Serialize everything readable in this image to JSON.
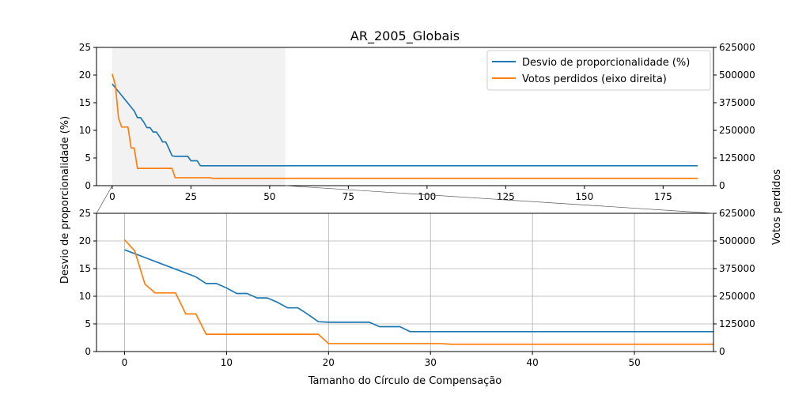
{
  "figure": {
    "title": "AR_2005_Globais",
    "ylabel_left": "Desvio de proporcionalidade (%)",
    "ylabel_right": "Votos perdidos",
    "xlabel": "Tamanho do Círculo de Compensação"
  },
  "legend": {
    "position": "top-right",
    "entries": [
      {
        "label": "Desvio de proporcionalidade (%)",
        "color": "#1f77b4"
      },
      {
        "label": "Votos perdidos (eixo direita)",
        "color": "#ff7f0e"
      }
    ]
  },
  "chart_data": [
    {
      "type": "line",
      "panel": "overview",
      "xlim": [
        -5,
        191
      ],
      "ylim": [
        0,
        25
      ],
      "ylim_right": [
        0,
        625000
      ],
      "x_ticks": [
        0,
        25,
        50,
        75,
        100,
        125,
        150,
        175
      ],
      "y_ticks": [
        0,
        5,
        10,
        15,
        20,
        25
      ],
      "y_ticks_right": [
        0,
        125000,
        250000,
        375000,
        500000,
        625000
      ],
      "grid": false,
      "shaded_x_range": [
        0,
        55
      ],
      "series_ref": [
        "desvio",
        "votos"
      ]
    },
    {
      "type": "line",
      "panel": "zoom",
      "xlim": [
        -2.75,
        57.75
      ],
      "ylim": [
        0,
        25
      ],
      "ylim_right": [
        0,
        625000
      ],
      "x_ticks": [
        0,
        10,
        20,
        30,
        40,
        50
      ],
      "y_ticks": [
        0,
        5,
        10,
        15,
        20,
        25
      ],
      "y_ticks_right": [
        0,
        125000,
        250000,
        375000,
        500000,
        625000
      ],
      "grid": true,
      "series_ref": [
        "desvio",
        "votos"
      ]
    }
  ],
  "series": {
    "desvio": {
      "name": "Desvio de proporcionalidade (%)",
      "axis": "left",
      "color": "#1f77b4",
      "points": [
        [
          0,
          18.4
        ],
        [
          1,
          17.7
        ],
        [
          2,
          17.0
        ],
        [
          3,
          16.3
        ],
        [
          4,
          15.6
        ],
        [
          5,
          14.9
        ],
        [
          6,
          14.2
        ],
        [
          7,
          13.5
        ],
        [
          8,
          12.3
        ],
        [
          9,
          12.3
        ],
        [
          10,
          11.5
        ],
        [
          11,
          10.5
        ],
        [
          12,
          10.5
        ],
        [
          13,
          9.7
        ],
        [
          14,
          9.7
        ],
        [
          15,
          8.9
        ],
        [
          16,
          7.9
        ],
        [
          17,
          7.9
        ],
        [
          18,
          6.7
        ],
        [
          19,
          5.4
        ],
        [
          20,
          5.3
        ],
        [
          24,
          5.3
        ],
        [
          25,
          4.5
        ],
        [
          27,
          4.5
        ],
        [
          28,
          3.6
        ],
        [
          186,
          3.6
        ]
      ]
    },
    "votos": {
      "name": "Votos perdidos (eixo direita)",
      "axis": "right",
      "color": "#ff7f0e",
      "points": [
        [
          0,
          505000
        ],
        [
          1,
          455000
        ],
        [
          2,
          305000
        ],
        [
          3,
          265000
        ],
        [
          5,
          265000
        ],
        [
          6,
          170000
        ],
        [
          7,
          170000
        ],
        [
          8,
          78000
        ],
        [
          19,
          78000
        ],
        [
          20,
          36000
        ],
        [
          31,
          36000
        ],
        [
          32,
          33000
        ],
        [
          186,
          33000
        ]
      ]
    }
  }
}
